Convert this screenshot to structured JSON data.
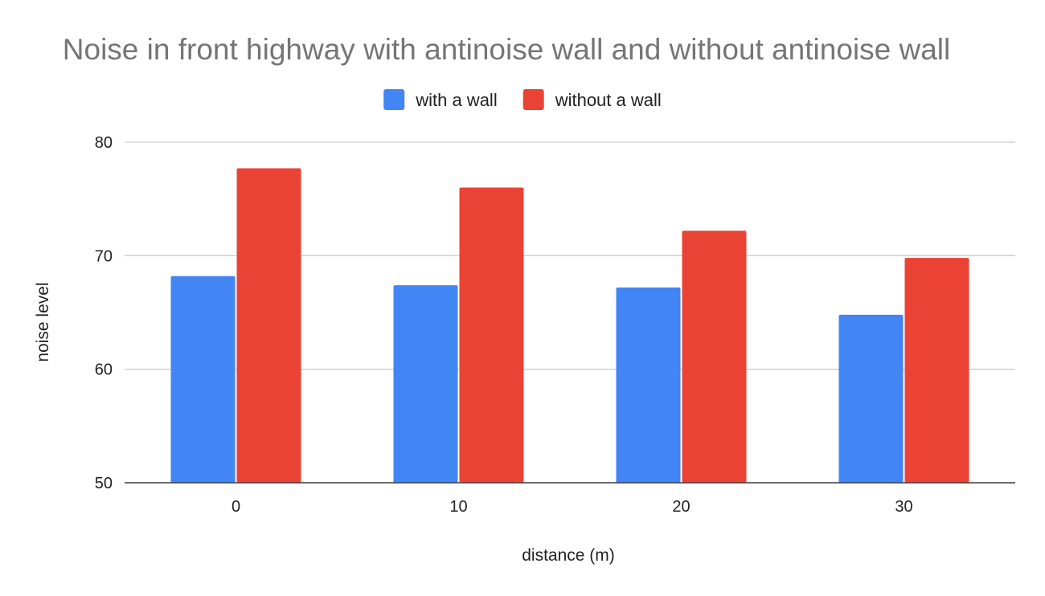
{
  "chart_data": {
    "type": "bar",
    "title": "Noise in front highway with antinoise wall and without antinoise wall",
    "xlabel": "distance (m)",
    "ylabel": "noise level",
    "categories": [
      "0",
      "10",
      "20",
      "30"
    ],
    "series": [
      {
        "name": "with a wall",
        "color": "#4285f4",
        "values": [
          68.2,
          67.4,
          67.2,
          64.8
        ]
      },
      {
        "name": "without a wall",
        "color": "#ea4335",
        "values": [
          77.7,
          76.0,
          72.2,
          69.8
        ]
      }
    ],
    "ylim": [
      50,
      80
    ],
    "yticks": [
      "50",
      "60",
      "70",
      "80"
    ],
    "grid": true,
    "legend_position": "top"
  }
}
